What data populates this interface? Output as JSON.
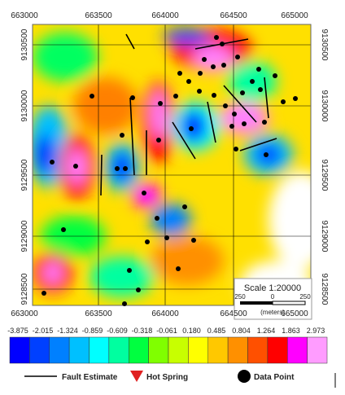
{
  "map": {
    "x_labels": [
      "663000",
      "663500",
      "664000",
      "664500",
      "665000"
    ],
    "y_labels": [
      "9130500",
      "9130000",
      "9129500",
      "9129000",
      "9128500"
    ],
    "color_scale": {
      "labels": [
        "-3.875",
        "-2.015",
        "-1.324",
        "-0.859",
        "-0.609",
        "-0.318",
        "-0.061",
        "0.180",
        "0.485",
        "0.804",
        "1.264",
        "1.863",
        "2.973"
      ],
      "colors": [
        "#0000ff",
        "#0040ff",
        "#0080ff",
        "#00c0ff",
        "#00ffff",
        "#00ffa0",
        "#00ff40",
        "#80ff00",
        "#c8ff00",
        "#ffff00",
        "#ffc800",
        "#ff9000",
        "#ff5000",
        "#ff0000",
        "#ff00ff",
        "#ff9cff"
      ]
    },
    "scale": {
      "title": "Scale 1:20000",
      "ticks": [
        "250",
        "0",
        "250"
      ],
      "unit": "(meters)"
    },
    "legend": [
      "Fault Estimate",
      "Hot Spring",
      "Data Point"
    ]
  }
}
